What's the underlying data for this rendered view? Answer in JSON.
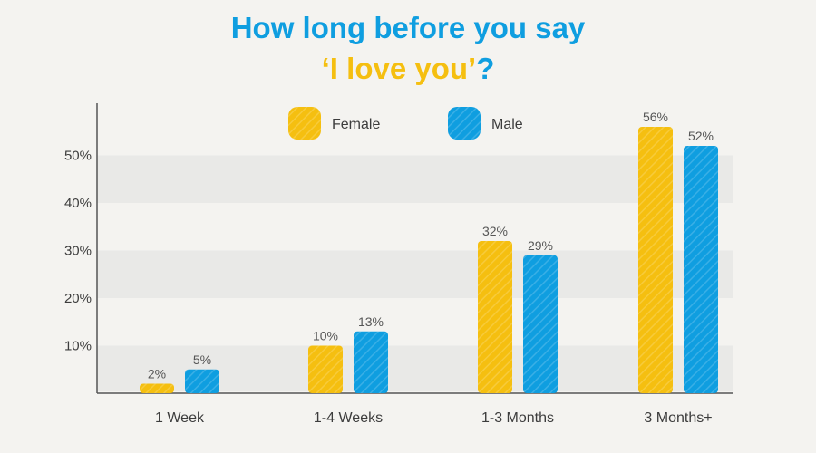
{
  "title_line1": "How long before you say",
  "title_line2": "‘I love you’",
  "title_line2_end": "?",
  "colors": {
    "female": "#f5bf10",
    "male": "#0f9ee0",
    "title_blue": "#0f9ee0",
    "title_yellow": "#f5bf10"
  },
  "chart_data": {
    "type": "bar",
    "categories": [
      "1 Week",
      "1-4 Weeks",
      "1-3 Months",
      "3 Months+"
    ],
    "series": [
      {
        "name": "Female",
        "values": [
          2,
          10,
          32,
          56
        ],
        "labels": [
          "2%",
          "10%",
          "32%",
          "56%"
        ]
      },
      {
        "name": "Male",
        "values": [
          5,
          13,
          29,
          52
        ],
        "labels": [
          "5%",
          "13%",
          "29%",
          "52%"
        ]
      }
    ],
    "yticks": [
      10,
      20,
      30,
      40,
      50
    ],
    "ytick_labels": [
      "10%",
      "20%",
      "30%",
      "40%",
      "50%"
    ],
    "ylim": [
      0,
      60
    ],
    "legend": "top",
    "grid": true
  }
}
